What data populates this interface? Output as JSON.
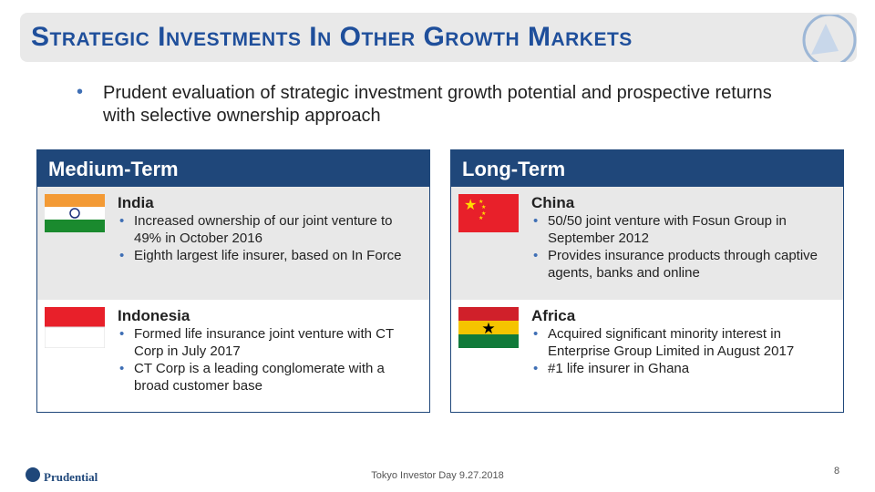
{
  "header": {
    "title": "Strategic Investments In Other Growth Markets"
  },
  "intro": "Prudent evaluation of strategic investment growth potential and prospective returns with selective ownership approach",
  "panels": [
    {
      "heading": "Medium-Term",
      "items": [
        {
          "country": "India",
          "bullets": [
            "Increased ownership of our joint venture to 49% in October 2016",
            "Eighth largest life insurer, based on In Force"
          ]
        },
        {
          "country": "Indonesia",
          "bullets": [
            "Formed life insurance joint venture with CT Corp in July 2017",
            "CT Corp is a leading conglomerate with a broad customer base"
          ]
        }
      ]
    },
    {
      "heading": "Long-Term",
      "items": [
        {
          "country": "China",
          "bullets": [
            "50/50 joint venture with Fosun Group in September 2012",
            "Provides insurance products through captive agents, banks and online"
          ]
        },
        {
          "country": "Africa",
          "bullets": [
            "Acquired significant minority interest in Enterprise Group Limited in August 2017",
            "#1 life insurer in Ghana"
          ]
        }
      ]
    }
  ],
  "footer": {
    "logo": "Prudential",
    "event": "Tokyo Investor Day 9.27.2018",
    "page": 8
  }
}
